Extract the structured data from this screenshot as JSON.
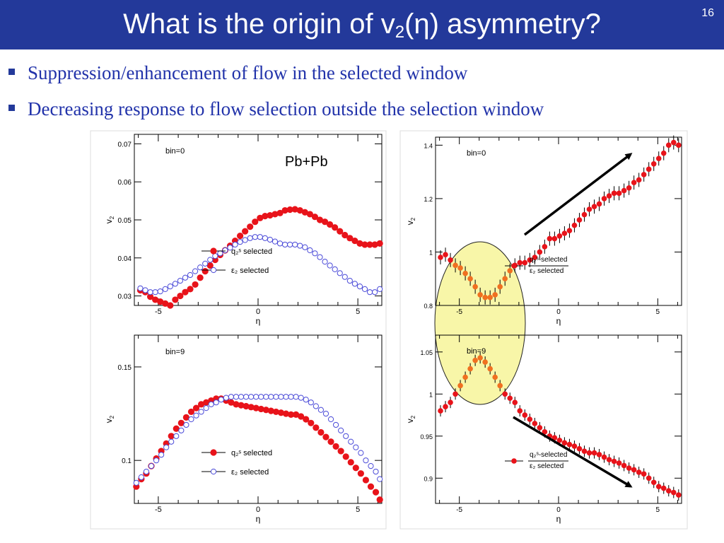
{
  "slide": {
    "title_main": "What is the origin of v",
    "title_sub": "2",
    "title_rest": "(η) asymmetry?",
    "number": "16"
  },
  "bullets": [
    "Suppression/enhancement of flow in the selected window",
    "Decreasing response to flow selection outside the selection window"
  ],
  "colors": {
    "title_bar": "#23399a",
    "bullet_text": "#2233aa",
    "series_filled": "#e8131a",
    "series_open": "#4a4ad8",
    "highlight": "#f8f6a8",
    "highlight_points": "#f07020"
  },
  "chart_data": [
    {
      "type": "scatter",
      "panel": "top-left",
      "annotation": "bin=0",
      "extra_label": "Pb+Pb",
      "xlabel": "η",
      "ylabel": "v",
      "ylabel_sub": "2",
      "xlim": [
        -6.2,
        6.2
      ],
      "ylim": [
        0.0275,
        0.0725
      ],
      "xticks": [
        -5,
        0,
        5
      ],
      "yticks": [
        0.03,
        0.04,
        0.05,
        0.06,
        0.07
      ],
      "ytick_labels": [
        "0.03",
        "0.04",
        "0.05",
        "0.06",
        "0.07"
      ],
      "legend": [
        "q₂ˢ selected",
        "ε₂ selected"
      ],
      "series": [
        {
          "name": "q₂ˢ selected",
          "marker": "filled",
          "x": [
            -5.9,
            -5.65,
            -5.4,
            -5.15,
            -4.9,
            -4.65,
            -4.4,
            -4.15,
            -3.9,
            -3.65,
            -3.4,
            -3.15,
            -2.9,
            -2.65,
            -2.4,
            -2.15,
            -1.9,
            -1.65,
            -1.4,
            -1.15,
            -0.9,
            -0.65,
            -0.4,
            -0.15,
            0.1,
            0.35,
            0.6,
            0.85,
            1.1,
            1.35,
            1.6,
            1.85,
            2.1,
            2.35,
            2.6,
            2.85,
            3.1,
            3.35,
            3.6,
            3.85,
            4.1,
            4.35,
            4.6,
            4.85,
            5.1,
            5.35,
            5.6,
            5.85,
            6.1
          ],
          "y": [
            0.0315,
            0.031,
            0.0298,
            0.029,
            0.0285,
            0.028,
            0.0275,
            0.029,
            0.03,
            0.031,
            0.0318,
            0.033,
            0.0348,
            0.0365,
            0.038,
            0.0395,
            0.0408,
            0.042,
            0.0432,
            0.0445,
            0.0458,
            0.047,
            0.0482,
            0.0495,
            0.0505,
            0.051,
            0.0512,
            0.0515,
            0.0518,
            0.0525,
            0.0527,
            0.0528,
            0.0525,
            0.052,
            0.0515,
            0.0508,
            0.05,
            0.0495,
            0.0488,
            0.048,
            0.047,
            0.046,
            0.0452,
            0.0445,
            0.0438,
            0.0435,
            0.0435,
            0.0435,
            0.0438
          ]
        },
        {
          "name": "ε₂ selected",
          "marker": "open",
          "x": [
            -5.9,
            -5.65,
            -5.4,
            -5.15,
            -4.9,
            -4.65,
            -4.4,
            -4.15,
            -3.9,
            -3.65,
            -3.4,
            -3.15,
            -2.9,
            -2.65,
            -2.4,
            -2.15,
            -1.9,
            -1.65,
            -1.4,
            -1.15,
            -0.9,
            -0.65,
            -0.4,
            -0.15,
            0.1,
            0.35,
            0.6,
            0.85,
            1.1,
            1.35,
            1.6,
            1.85,
            2.1,
            2.35,
            2.6,
            2.85,
            3.1,
            3.35,
            3.6,
            3.85,
            4.1,
            4.35,
            4.6,
            4.85,
            5.1,
            5.35,
            5.6,
            5.85,
            6.1
          ],
          "y": [
            0.032,
            0.0315,
            0.031,
            0.031,
            0.0312,
            0.0318,
            0.0325,
            0.0332,
            0.034,
            0.0348,
            0.0355,
            0.0365,
            0.0375,
            0.0385,
            0.0395,
            0.0405,
            0.0412,
            0.042,
            0.0427,
            0.0435,
            0.0442,
            0.0447,
            0.0452,
            0.0455,
            0.0455,
            0.0452,
            0.0448,
            0.0443,
            0.0438,
            0.0435,
            0.0435,
            0.0435,
            0.0432,
            0.0428,
            0.042,
            0.0412,
            0.0402,
            0.039,
            0.038,
            0.037,
            0.036,
            0.035,
            0.034,
            0.0332,
            0.0325,
            0.0318,
            0.031,
            0.031,
            0.0318
          ]
        }
      ]
    },
    {
      "type": "scatter",
      "panel": "bottom-left",
      "annotation": "bin=9",
      "xlabel": "η",
      "ylabel": "v",
      "ylabel_sub": "2",
      "xlim": [
        -6.2,
        6.2
      ],
      "ylim": [
        0.077,
        0.167
      ],
      "xticks": [
        -5,
        0,
        5
      ],
      "yticks": [
        0.1,
        0.15
      ],
      "ytick_labels": [
        "0.1",
        "0.15"
      ],
      "legend": [
        "q₂ˢ selected",
        "ε₂ selected"
      ],
      "series": [
        {
          "name": "q₂ˢ selected",
          "marker": "filled",
          "x": [
            -6.1,
            -5.85,
            -5.6,
            -5.35,
            -5.1,
            -4.85,
            -4.6,
            -4.35,
            -4.1,
            -3.85,
            -3.6,
            -3.35,
            -3.1,
            -2.85,
            -2.6,
            -2.35,
            -2.1,
            -1.85,
            -1.6,
            -1.35,
            -1.1,
            -0.85,
            -0.6,
            -0.35,
            -0.1,
            0.15,
            0.4,
            0.65,
            0.9,
            1.15,
            1.4,
            1.65,
            1.9,
            2.15,
            2.4,
            2.65,
            2.9,
            3.15,
            3.4,
            3.65,
            3.9,
            4.15,
            4.4,
            4.65,
            4.9,
            5.15,
            5.4,
            5.65,
            5.9,
            6.1
          ],
          "y": [
            0.086,
            0.09,
            0.093,
            0.097,
            0.101,
            0.105,
            0.109,
            0.113,
            0.117,
            0.12,
            0.123,
            0.126,
            0.128,
            0.13,
            0.131,
            0.132,
            0.133,
            0.133,
            0.132,
            0.131,
            0.13,
            0.1295,
            0.129,
            0.1285,
            0.128,
            0.1275,
            0.127,
            0.1265,
            0.126,
            0.1255,
            0.125,
            0.1245,
            0.1245,
            0.1235,
            0.122,
            0.12,
            0.1175,
            0.115,
            0.1125,
            0.11,
            0.1075,
            0.105,
            0.102,
            0.099,
            0.096,
            0.093,
            0.0895,
            0.086,
            0.083,
            0.079
          ]
        },
        {
          "name": "ε₂ selected",
          "marker": "open",
          "x": [
            -6.1,
            -5.85,
            -5.6,
            -5.35,
            -5.1,
            -4.85,
            -4.6,
            -4.35,
            -4.1,
            -3.85,
            -3.6,
            -3.35,
            -3.1,
            -2.85,
            -2.6,
            -2.35,
            -2.1,
            -1.85,
            -1.6,
            -1.35,
            -1.1,
            -0.85,
            -0.6,
            -0.35,
            -0.1,
            0.15,
            0.4,
            0.65,
            0.9,
            1.15,
            1.4,
            1.65,
            1.9,
            2.15,
            2.4,
            2.65,
            2.9,
            3.15,
            3.4,
            3.65,
            3.9,
            4.15,
            4.4,
            4.65,
            4.9,
            5.15,
            5.4,
            5.65,
            5.9,
            6.1
          ],
          "y": [
            0.088,
            0.091,
            0.094,
            0.097,
            0.1,
            0.103,
            0.107,
            0.11,
            0.113,
            0.116,
            0.119,
            0.122,
            0.124,
            0.126,
            0.128,
            0.13,
            0.131,
            0.1325,
            0.1335,
            0.134,
            0.134,
            0.134,
            0.134,
            0.134,
            0.134,
            0.134,
            0.134,
            0.134,
            0.134,
            0.134,
            0.134,
            0.134,
            0.134,
            0.1335,
            0.1325,
            0.131,
            0.129,
            0.127,
            0.125,
            0.122,
            0.119,
            0.116,
            0.113,
            0.11,
            0.107,
            0.104,
            0.1,
            0.097,
            0.094,
            0.09
          ]
        }
      ]
    },
    {
      "type": "scatter",
      "panel": "top-right",
      "annotation": "bin=0",
      "xlabel": "η",
      "ylabel": "v",
      "ylabel_sub": "2",
      "xlim": [
        -6.2,
        6.2
      ],
      "ylim": [
        0.8,
        1.43
      ],
      "xticks": [
        -5,
        0,
        5
      ],
      "yticks": [
        0.8,
        1.0,
        1.2,
        1.4
      ],
      "ytick_labels": [
        "0.8",
        "1",
        "1.2",
        "1.4"
      ],
      "legend_numerator": "q₂ˢ-selected",
      "legend_denominator": "ε₂ selected",
      "series": [
        {
          "name": "q₂ˢ-selected / ε₂ selected",
          "marker": "filled",
          "errorbars": true,
          "x": [
            -5.95,
            -5.7,
            -5.45,
            -5.2,
            -4.95,
            -4.7,
            -4.45,
            -4.2,
            -3.95,
            -3.7,
            -3.45,
            -3.2,
            -2.95,
            -2.7,
            -2.45,
            -2.2,
            -1.95,
            -1.7,
            -1.45,
            -1.2,
            -0.95,
            -0.7,
            -0.45,
            -0.2,
            0.05,
            0.3,
            0.55,
            0.8,
            1.05,
            1.3,
            1.55,
            1.8,
            2.05,
            2.3,
            2.55,
            2.8,
            3.05,
            3.3,
            3.55,
            3.8,
            4.05,
            4.3,
            4.55,
            4.8,
            5.05,
            5.3,
            5.55,
            5.8,
            6.05
          ],
          "y": [
            0.98,
            0.99,
            0.97,
            0.95,
            0.94,
            0.92,
            0.9,
            0.87,
            0.84,
            0.83,
            0.83,
            0.84,
            0.87,
            0.9,
            0.93,
            0.95,
            0.96,
            0.96,
            0.97,
            0.98,
            1.0,
            1.02,
            1.05,
            1.05,
            1.06,
            1.07,
            1.08,
            1.1,
            1.12,
            1.14,
            1.16,
            1.17,
            1.18,
            1.2,
            1.21,
            1.22,
            1.22,
            1.23,
            1.24,
            1.26,
            1.27,
            1.29,
            1.31,
            1.33,
            1.35,
            1.37,
            1.4,
            1.41,
            1.4
          ]
        }
      ]
    },
    {
      "type": "scatter",
      "panel": "bottom-right",
      "annotation": "bin=9",
      "xlabel": "η",
      "ylabel": "v",
      "ylabel_sub": "2",
      "xlim": [
        -6.2,
        6.2
      ],
      "ylim": [
        0.87,
        1.07
      ],
      "xticks": [
        -5,
        0,
        5
      ],
      "yticks": [
        0.9,
        0.95,
        1.0,
        1.05
      ],
      "ytick_labels": [
        "0.9",
        "0.95",
        "1",
        "1.05"
      ],
      "legend_numerator": "q₂ˢ-selected",
      "legend_denominator": "ε₂ selected",
      "series": [
        {
          "name": "q₂ˢ-selected / ε₂ selected",
          "marker": "filled",
          "errorbars": true,
          "x": [
            -5.95,
            -5.7,
            -5.45,
            -5.2,
            -4.95,
            -4.7,
            -4.45,
            -4.2,
            -3.95,
            -3.7,
            -3.45,
            -3.2,
            -2.95,
            -2.7,
            -2.45,
            -2.2,
            -1.95,
            -1.7,
            -1.45,
            -1.2,
            -0.95,
            -0.7,
            -0.45,
            -0.2,
            0.05,
            0.3,
            0.55,
            0.8,
            1.05,
            1.3,
            1.55,
            1.8,
            2.05,
            2.3,
            2.55,
            2.8,
            3.05,
            3.3,
            3.55,
            3.8,
            4.05,
            4.3,
            4.55,
            4.8,
            5.05,
            5.3,
            5.55,
            5.8,
            6.05
          ],
          "y": [
            0.98,
            0.985,
            0.99,
            1.0,
            1.01,
            1.02,
            1.03,
            1.04,
            1.043,
            1.038,
            1.03,
            1.02,
            1.01,
            1.0,
            0.995,
            0.99,
            0.98,
            0.975,
            0.97,
            0.965,
            0.96,
            0.955,
            0.95,
            0.948,
            0.945,
            0.942,
            0.94,
            0.938,
            0.935,
            0.932,
            0.93,
            0.93,
            0.928,
            0.925,
            0.922,
            0.92,
            0.918,
            0.915,
            0.912,
            0.91,
            0.907,
            0.905,
            0.9,
            0.895,
            0.89,
            0.888,
            0.885,
            0.883,
            0.88
          ]
        }
      ]
    }
  ]
}
